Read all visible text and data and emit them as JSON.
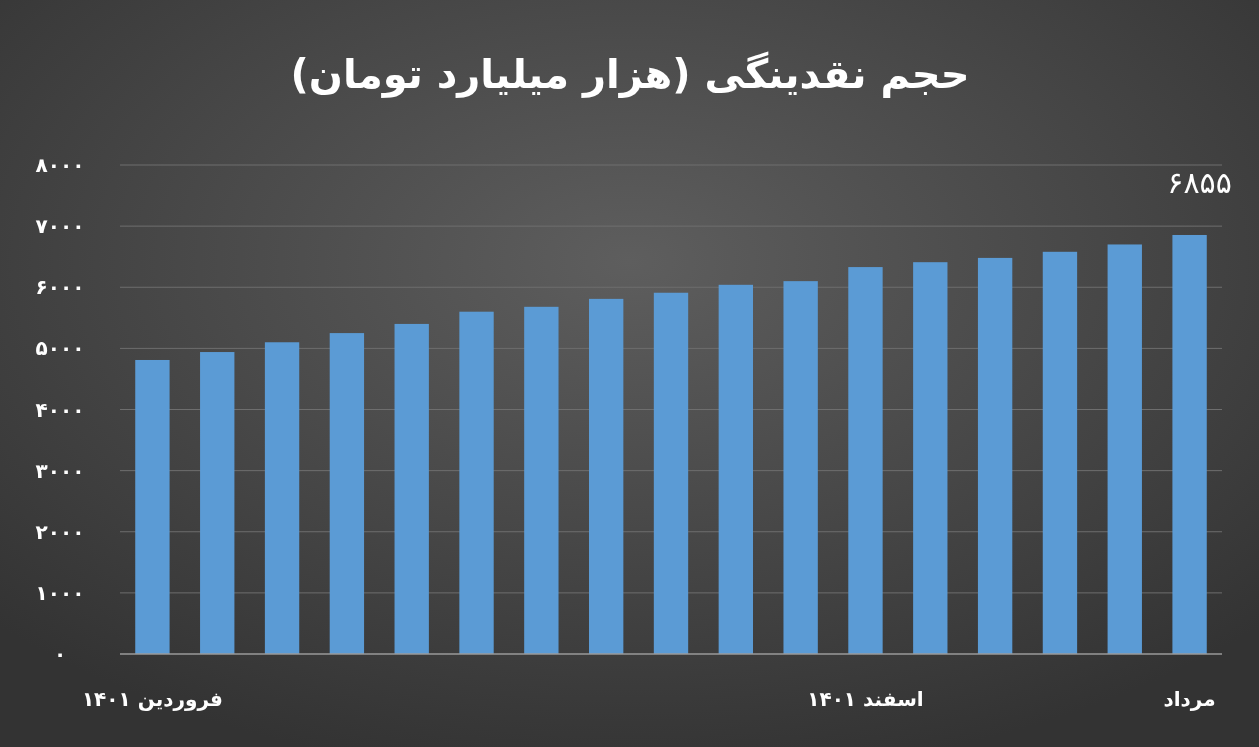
{
  "chart_data": {
    "type": "bar",
    "title": "حجم نقدینگی (هزار میلیارد تومان)",
    "categories": [
      "فروردین ۱۴۰۱",
      null,
      null,
      null,
      null,
      null,
      null,
      null,
      null,
      null,
      null,
      "اسفند ۱۴۰۱",
      null,
      null,
      null,
      null,
      "مرداد"
    ],
    "values": [
      4810,
      4940,
      5100,
      5250,
      5400,
      5600,
      5680,
      5810,
      5910,
      6040,
      6100,
      6330,
      6410,
      6480,
      6580,
      6700,
      6855
    ],
    "value_labels": [
      null,
      null,
      null,
      null,
      null,
      null,
      null,
      null,
      null,
      null,
      null,
      null,
      null,
      null,
      null,
      null,
      "۶۸۵۵"
    ],
    "color": "#5b9bd5",
    "ylim": [
      0,
      8000
    ],
    "yticks": [
      {
        "value": 0,
        "label": "۰"
      },
      {
        "value": 1000,
        "label": "۱۰۰۰"
      },
      {
        "value": 2000,
        "label": "۲۰۰۰"
      },
      {
        "value": 3000,
        "label": "۳۰۰۰"
      },
      {
        "value": 4000,
        "label": "۴۰۰۰"
      },
      {
        "value": 5000,
        "label": "۵۰۰۰"
      },
      {
        "value": 6000,
        "label": "۶۰۰۰"
      },
      {
        "value": 7000,
        "label": "۷۰۰۰"
      },
      {
        "value": 8000,
        "label": "۸۰۰۰"
      }
    ],
    "grid": "y"
  }
}
